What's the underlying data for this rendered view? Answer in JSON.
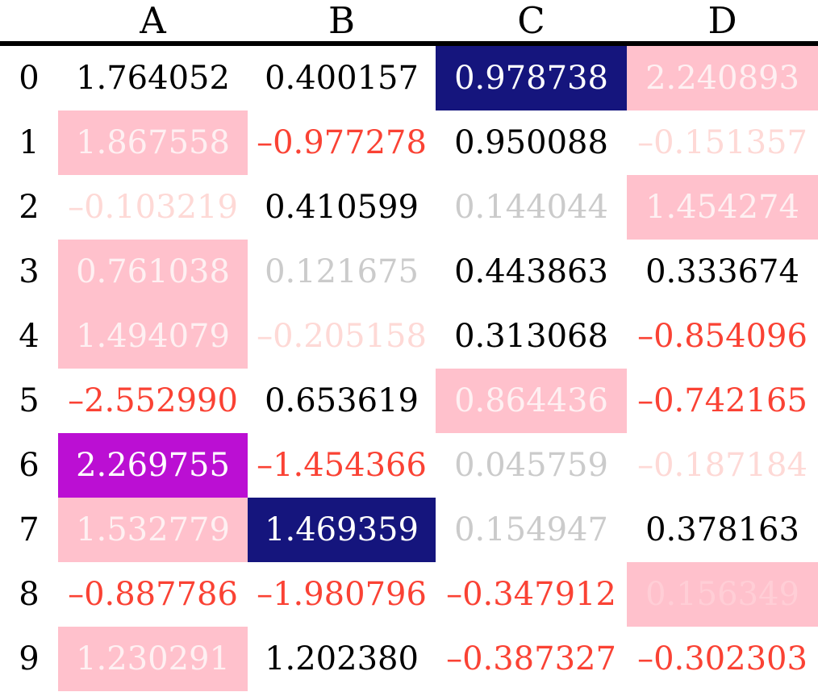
{
  "table": {
    "columns": [
      "A",
      "B",
      "C",
      "D"
    ],
    "rows": [
      {
        "index": "0",
        "cells": [
          {
            "value": "1.764052",
            "style": "default"
          },
          {
            "value": "0.400157",
            "style": "default"
          },
          {
            "value": "0.978738",
            "style": "col_max"
          },
          {
            "value": "2.240893",
            "style": "row_max"
          }
        ]
      },
      {
        "index": "1",
        "cells": [
          {
            "value": "1.867558",
            "style": "row_max"
          },
          {
            "value": "–0.977278",
            "style": "negative"
          },
          {
            "value": "0.950088",
            "style": "default"
          },
          {
            "value": "–0.151357",
            "style": "negative_faded"
          }
        ]
      },
      {
        "index": "2",
        "cells": [
          {
            "value": "–0.103219",
            "style": "negative_faded"
          },
          {
            "value": "0.410599",
            "style": "default"
          },
          {
            "value": "0.144044",
            "style": "faded"
          },
          {
            "value": "1.454274",
            "style": "row_max"
          }
        ]
      },
      {
        "index": "3",
        "cells": [
          {
            "value": "0.761038",
            "style": "row_max"
          },
          {
            "value": "0.121675",
            "style": "faded"
          },
          {
            "value": "0.443863",
            "style": "default"
          },
          {
            "value": "0.333674",
            "style": "default"
          }
        ]
      },
      {
        "index": "4",
        "cells": [
          {
            "value": "1.494079",
            "style": "row_max"
          },
          {
            "value": "–0.205158",
            "style": "negative_faded"
          },
          {
            "value": "0.313068",
            "style": "default"
          },
          {
            "value": "–0.854096",
            "style": "negative"
          }
        ]
      },
      {
        "index": "5",
        "cells": [
          {
            "value": "–2.552990",
            "style": "negative"
          },
          {
            "value": "0.653619",
            "style": "default"
          },
          {
            "value": "0.864436",
            "style": "row_max"
          },
          {
            "value": "–0.742165",
            "style": "negative"
          }
        ]
      },
      {
        "index": "6",
        "cells": [
          {
            "value": "2.269755",
            "style": "table_max"
          },
          {
            "value": "–1.454366",
            "style": "negative"
          },
          {
            "value": "0.045759",
            "style": "faded"
          },
          {
            "value": "–0.187184",
            "style": "negative_faded"
          }
        ]
      },
      {
        "index": "7",
        "cells": [
          {
            "value": "1.532779",
            "style": "row_max"
          },
          {
            "value": "1.469359",
            "style": "col_max"
          },
          {
            "value": "0.154947",
            "style": "faded"
          },
          {
            "value": "0.378163",
            "style": "default"
          }
        ]
      },
      {
        "index": "8",
        "cells": [
          {
            "value": "–0.887786",
            "style": "negative"
          },
          {
            "value": "–1.980796",
            "style": "negative"
          },
          {
            "value": "–0.347912",
            "style": "negative"
          },
          {
            "value": "0.156349",
            "style": "row_max_faded"
          }
        ]
      },
      {
        "index": "9",
        "cells": [
          {
            "value": "1.230291",
            "style": "row_max"
          },
          {
            "value": "1.202380",
            "style": "default"
          },
          {
            "value": "–0.387327",
            "style": "negative"
          },
          {
            "value": "–0.302303",
            "style": "negative"
          }
        ]
      }
    ]
  },
  "cell_styles": {
    "default": {
      "color": "#000000",
      "background": ""
    },
    "negative": {
      "color": "#FA4234",
      "background": ""
    },
    "faded": {
      "color": "#CBCBCB",
      "background": ""
    },
    "negative_faded": {
      "color": "#FED9D6",
      "background": ""
    },
    "col_max": {
      "color": "#FFFFFF",
      "background": "#15157D"
    },
    "row_max": {
      "color": "#FEF0F2",
      "background": "#FFC1CC"
    },
    "row_max_faded": {
      "color": "#FFCED6",
      "background": "#FFC1CC"
    },
    "table_max": {
      "color": "#FFFFFF",
      "background": "#BB0FD3"
    }
  },
  "colors": {
    "text_default": "#000000",
    "text_negative_red": "#FA4234",
    "text_faded_gray": "#CBCBCB",
    "text_faded_pink": "#FED9D6",
    "bg_column_max_darkblue": "#15157D",
    "bg_row_max_pink": "#FFC1CC",
    "bg_table_max_purple": "#BB0FD3",
    "header_rule_black": "#000000"
  },
  "chart_data": {
    "type": "table",
    "columns": [
      "A",
      "B",
      "C",
      "D"
    ],
    "index": [
      0,
      1,
      2,
      3,
      4,
      5,
      6,
      7,
      8,
      9
    ],
    "values": [
      [
        1.764052,
        0.400157,
        0.978738,
        2.240893
      ],
      [
        1.867558,
        -0.977278,
        0.950088,
        -0.151357
      ],
      [
        -0.103219,
        0.410599,
        0.144044,
        1.454274
      ],
      [
        0.761038,
        0.121675,
        0.443863,
        0.333674
      ],
      [
        1.494079,
        -0.205158,
        0.313068,
        -0.854096
      ],
      [
        -2.55299,
        0.653619,
        0.864436,
        -0.742165
      ],
      [
        2.269755,
        -1.454366,
        0.045759,
        -0.187184
      ],
      [
        1.532779,
        1.469359,
        0.154947,
        0.378163
      ],
      [
        -0.887786,
        -1.980796,
        -0.347912,
        0.156349
      ],
      [
        1.230291,
        1.20238,
        -0.387327,
        -0.302303
      ]
    ],
    "title": "",
    "style_rules": [
      "negative values shown in red",
      "values with absolute value < 0.3 shown at 20% opacity (faded)",
      "column maximum: white text on dark blue background",
      "row maximum: white text on pink background",
      "table maximum: white text on purple background"
    ],
    "legend_position": "none",
    "grid": false
  }
}
